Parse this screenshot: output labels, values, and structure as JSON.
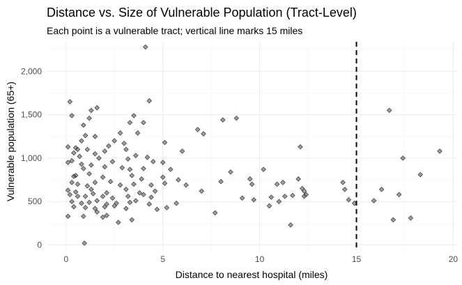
{
  "chart_data": {
    "type": "scatter",
    "title": "Distance vs. Size of Vulnerable Population (Tract-Level)",
    "subtitle": "Each point is a vulnerable tract; vertical line marks 15 miles",
    "xlabel": "Distance to nearest hospital (miles)",
    "ylabel": "Vulnerable population (65+)",
    "xlim": [
      -1,
      20.2
    ],
    "ylim": [
      -60,
      2340
    ],
    "x_ticks": [
      0,
      5,
      10,
      15,
      20
    ],
    "x_tick_labels": [
      "0",
      "5",
      "10",
      "15",
      "20"
    ],
    "y_ticks": [
      0,
      500,
      1000,
      1500,
      2000
    ],
    "y_tick_labels": [
      "0",
      "500",
      "1,000",
      "1,500",
      "2,000"
    ],
    "grid": true,
    "legend": "none",
    "reference_line": {
      "x": 15,
      "style": "dashed",
      "color": "#000000"
    },
    "point_color": "#3a3a3a",
    "points": [
      [
        4.1,
        2280
      ],
      [
        0.2,
        1650
      ],
      [
        4.3,
        1660
      ],
      [
        1.6,
        1580
      ],
      [
        1.3,
        1550
      ],
      [
        0.3,
        1490
      ],
      [
        3.5,
        1490
      ],
      [
        1.2,
        1460
      ],
      [
        3.3,
        1410
      ],
      [
        4.0,
        1410
      ],
      [
        0.9,
        1380
      ],
      [
        2.8,
        1290
      ],
      [
        3.7,
        1290
      ],
      [
        1.5,
        1250
      ],
      [
        1.0,
        1260
      ],
      [
        0.8,
        1200
      ],
      [
        2.5,
        1200
      ],
      [
        0.1,
        1130
      ],
      [
        0.5,
        1120
      ],
      [
        0.6,
        1100
      ],
      [
        1.1,
        1100
      ],
      [
        0.4,
        1060
      ],
      [
        1.5,
        1050
      ],
      [
        2.2,
        1140
      ],
      [
        3.1,
        1100
      ],
      [
        2.0,
        1080
      ],
      [
        3.0,
        1170
      ],
      [
        5.1,
        1180
      ],
      [
        0.7,
        1020
      ],
      [
        1.7,
        1000
      ],
      [
        0.3,
        970
      ],
      [
        1.3,
        920
      ],
      [
        0.1,
        950
      ],
      [
        0.8,
        930
      ],
      [
        2.4,
        960
      ],
      [
        3.2,
        990
      ],
      [
        3.6,
        1030
      ],
      [
        4.2,
        1010
      ],
      [
        4.5,
        960
      ],
      [
        5.0,
        950
      ],
      [
        6.0,
        1080
      ],
      [
        7.1,
        1280
      ],
      [
        6.8,
        1330
      ],
      [
        0.9,
        880
      ],
      [
        2.0,
        900
      ],
      [
        2.9,
        890
      ],
      [
        3.3,
        870
      ],
      [
        4.0,
        880
      ],
      [
        5.4,
        870
      ],
      [
        0.4,
        790
      ],
      [
        0.5,
        800
      ],
      [
        1.2,
        820
      ],
      [
        1.9,
        780
      ],
      [
        3.4,
        800
      ],
      [
        3.9,
        760
      ],
      [
        5.0,
        780
      ],
      [
        5.8,
        750
      ],
      [
        0.3,
        720
      ],
      [
        0.6,
        700
      ],
      [
        1.1,
        680
      ],
      [
        1.5,
        720
      ],
      [
        2.3,
        730
      ],
      [
        2.8,
        690
      ],
      [
        3.5,
        700
      ],
      [
        4.4,
        690
      ],
      [
        5.1,
        710
      ],
      [
        6.2,
        690
      ],
      [
        0.1,
        630
      ],
      [
        0.5,
        610
      ],
      [
        1.3,
        640
      ],
      [
        2.1,
        600
      ],
      [
        3.1,
        640
      ],
      [
        3.8,
        600
      ],
      [
        4.6,
        620
      ],
      [
        7.0,
        620
      ],
      [
        0.2,
        580
      ],
      [
        0.6,
        560
      ],
      [
        1.0,
        560
      ],
      [
        1.4,
        590
      ],
      [
        1.9,
        560
      ],
      [
        2.4,
        540
      ],
      [
        3.2,
        560
      ],
      [
        4.0,
        580
      ],
      [
        4.4,
        550
      ],
      [
        0.3,
        500
      ],
      [
        0.8,
        480
      ],
      [
        1.2,
        490
      ],
      [
        1.6,
        510
      ],
      [
        2.1,
        470
      ],
      [
        2.6,
        480
      ],
      [
        3.3,
        490
      ],
      [
        3.6,
        510
      ],
      [
        4.3,
        470
      ],
      [
        5.7,
        480
      ],
      [
        0.4,
        440
      ],
      [
        1.0,
        430
      ],
      [
        1.5,
        420
      ],
      [
        2.0,
        440
      ],
      [
        2.5,
        450
      ],
      [
        3.1,
        420
      ],
      [
        4.7,
        410
      ],
      [
        5.2,
        430
      ],
      [
        1.6,
        380
      ],
      [
        1.9,
        320
      ],
      [
        2.1,
        340
      ],
      [
        2.7,
        260
      ],
      [
        3.4,
        290
      ],
      [
        0.1,
        330
      ],
      [
        0.9,
        330
      ],
      [
        0.95,
        20
      ],
      [
        7.7,
        370
      ],
      [
        8.1,
        1440
      ],
      [
        8.8,
        1460
      ],
      [
        8.5,
        840
      ],
      [
        9.5,
        760
      ],
      [
        9.6,
        700
      ],
      [
        10.2,
        870
      ],
      [
        10.9,
        700
      ],
      [
        11.2,
        720
      ],
      [
        12.2,
        650
      ],
      [
        12.3,
        620
      ],
      [
        12.1,
        1130
      ],
      [
        12.0,
        760
      ],
      [
        8.0,
        730
      ],
      [
        9.7,
        520
      ],
      [
        10.6,
        550
      ],
      [
        11.3,
        560
      ],
      [
        11.7,
        570
      ],
      [
        12.4,
        580
      ],
      [
        12.3,
        560
      ],
      [
        11.0,
        500
      ],
      [
        10.5,
        450
      ],
      [
        9.1,
        540
      ],
      [
        11.6,
        230
      ],
      [
        14.3,
        720
      ],
      [
        14.4,
        640
      ],
      [
        14.6,
        520
      ],
      [
        14.9,
        480
      ],
      [
        15.9,
        510
      ],
      [
        16.3,
        640
      ],
      [
        16.7,
        1550
      ],
      [
        16.9,
        290
      ],
      [
        17.2,
        580
      ],
      [
        17.4,
        1000
      ],
      [
        18.3,
        810
      ],
      [
        17.8,
        310
      ],
      [
        19.3,
        1080
      ]
    ]
  }
}
